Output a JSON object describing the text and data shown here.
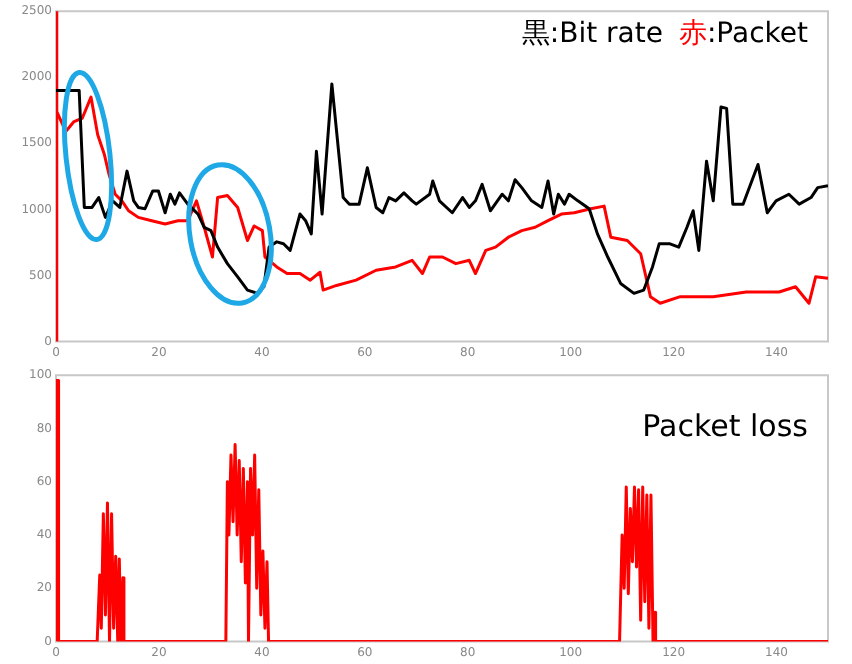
{
  "chart_data": [
    {
      "type": "line",
      "xlim": [
        0,
        150
      ],
      "xticks": [
        0,
        20,
        40,
        60,
        80,
        100,
        120,
        140
      ],
      "ylim": [
        0,
        2500
      ],
      "yticks": [
        0,
        500,
        1000,
        1500,
        2000,
        2500
      ],
      "grid": false,
      "legend": "top right",
      "marker": "none",
      "series": [
        {
          "name": "黒:Bit rate",
          "color": "#000000",
          "x": [
            0,
            4.5,
            5.5,
            7,
            8.3,
            9.6,
            11,
            12.4,
            13.8,
            15.1,
            16,
            17.3,
            18.8,
            19.9,
            21.2,
            22.2,
            23.1,
            24,
            25.6,
            27.6,
            28.8,
            30.1,
            31.4,
            33.3,
            35.3,
            37.2,
            39.1,
            40.4,
            41.4,
            42.9,
            44.2,
            45.5,
            47.4,
            48.5,
            49.6,
            50.6,
            51.7,
            53.6,
            55.8,
            57,
            58.9,
            60.5,
            62.2,
            63.5,
            64.7,
            66,
            67.6,
            69.2,
            70,
            72.6,
            73.2,
            74.5,
            77,
            79,
            80.3,
            81.5,
            82.8,
            84.4,
            86.7,
            87.9,
            89.2,
            90.5,
            92.4,
            94.4,
            95.6,
            96.7,
            97.6,
            98.8,
            99.7,
            101.4,
            103.6,
            105.2,
            107.2,
            109.7,
            112.3,
            114.2,
            115.9,
            117.2,
            119.3,
            121,
            122.6,
            123.8,
            124.9,
            126.4,
            127.7,
            129.2,
            130.3,
            131.5,
            133.5,
            136.4,
            138.2,
            139.9,
            142.4,
            144.4,
            146.7,
            148,
            150
          ],
          "values": [
            1900,
            1900,
            1015,
            1015,
            1090,
            940,
            1065,
            1015,
            1290,
            1065,
            1015,
            1005,
            1140,
            1140,
            975,
            1115,
            1040,
            1125,
            1040,
            965,
            865,
            840,
            715,
            590,
            490,
            390,
            365,
            415,
            715,
            755,
            740,
            690,
            965,
            915,
            815,
            1440,
            965,
            1950,
            1090,
            1040,
            1040,
            1315,
            1015,
            975,
            1090,
            1065,
            1125,
            1065,
            1040,
            1115,
            1215,
            1065,
            975,
            1090,
            1015,
            1065,
            1190,
            990,
            1115,
            1065,
            1225,
            1165,
            1065,
            1015,
            1215,
            965,
            1115,
            1040,
            1115,
            1065,
            1005,
            815,
            640,
            440,
            365,
            390,
            565,
            740,
            740,
            715,
            865,
            990,
            690,
            1365,
            1065,
            1775,
            1765,
            1040,
            1040,
            1340,
            975,
            1065,
            1115,
            1040,
            1090,
            1165,
            1180
          ]
        },
        {
          "name": "赤:Packet",
          "color": "#ff0000",
          "x": [
            0,
            0,
            0.3,
            1.9,
            3.5,
            5.1,
            6.8,
            8.1,
            9.4,
            10.3,
            11.5,
            12.8,
            14.1,
            16,
            18.6,
            21.2,
            23.7,
            25.6,
            27.3,
            28.8,
            30.4,
            31.4,
            33.3,
            35.3,
            37.2,
            38.5,
            40.1,
            40.6,
            42.9,
            44.9,
            47.4,
            49.4,
            51.3,
            51.9,
            54.5,
            58.3,
            62.2,
            66,
            69.2,
            71.2,
            72.6,
            75.1,
            77.7,
            80.3,
            81.5,
            83.5,
            85.4,
            87.9,
            90.5,
            93.1,
            95.6,
            98.2,
            100.7,
            103.9,
            106.5,
            107.8,
            111,
            113.6,
            115.5,
            117.4,
            121.3,
            127.7,
            134.1,
            140.5,
            143.7,
            146.3,
            147.6,
            150
          ],
          "values": [
            0,
            2500,
            1740,
            1590,
            1665,
            1690,
            1850,
            1565,
            1415,
            1265,
            1115,
            1065,
            990,
            940,
            915,
            890,
            915,
            915,
            1065,
            865,
            640,
            1090,
            1105,
            1015,
            765,
            875,
            840,
            640,
            565,
            515,
            515,
            465,
            525,
            390,
            425,
            465,
            540,
            565,
            615,
            515,
            640,
            640,
            590,
            615,
            515,
            690,
            715,
            790,
            840,
            865,
            915,
            965,
            975,
            1005,
            1025,
            790,
            765,
            665,
            340,
            290,
            340,
            340,
            375,
            375,
            415,
            290,
            490,
            480
          ]
        }
      ]
    },
    {
      "type": "line",
      "title": "Packet loss",
      "xlim": [
        0,
        150
      ],
      "xticks": [
        0,
        20,
        40,
        60,
        80,
        100,
        120,
        140
      ],
      "ylim": [
        0,
        100
      ],
      "yticks": [
        0,
        20,
        40,
        60,
        80,
        100
      ],
      "grid": false,
      "marker": "none",
      "series": [
        {
          "color": "#ff0000",
          "x": [
            0,
            0,
            0.4,
            0.5,
            8,
            8.5,
            8.8,
            9.2,
            9.6,
            10,
            10.4,
            10.8,
            11.2,
            11.6,
            12,
            12.3,
            12.6,
            13,
            13.2,
            33,
            33.3,
            33.6,
            34,
            34.4,
            34.8,
            35.2,
            35.6,
            36,
            36.4,
            36.8,
            37.2,
            37.4,
            37.8,
            38.2,
            38.6,
            39,
            39.4,
            39.8,
            40.2,
            40.6,
            41,
            41.3,
            109.5,
            110,
            110.4,
            110.8,
            111.2,
            111.6,
            112,
            112.4,
            112.8,
            113.2,
            113.6,
            114,
            114.4,
            114.8,
            115.2,
            115.6,
            116,
            116.2,
            116.5,
            150
          ],
          "values": [
            0,
            98,
            98,
            0,
            0,
            25,
            5,
            48,
            10,
            52,
            0,
            48,
            5,
            32,
            0,
            31,
            0,
            24,
            0,
            0,
            60,
            40,
            70,
            45,
            74,
            40,
            68,
            30,
            65,
            22,
            60,
            0,
            65,
            40,
            70,
            20,
            57,
            10,
            34,
            5,
            30,
            0,
            0,
            40,
            20,
            58,
            18,
            50,
            30,
            58,
            28,
            57,
            8,
            58,
            15,
            55,
            5,
            55,
            0,
            11,
            0,
            0
          ]
        }
      ]
    }
  ]
}
